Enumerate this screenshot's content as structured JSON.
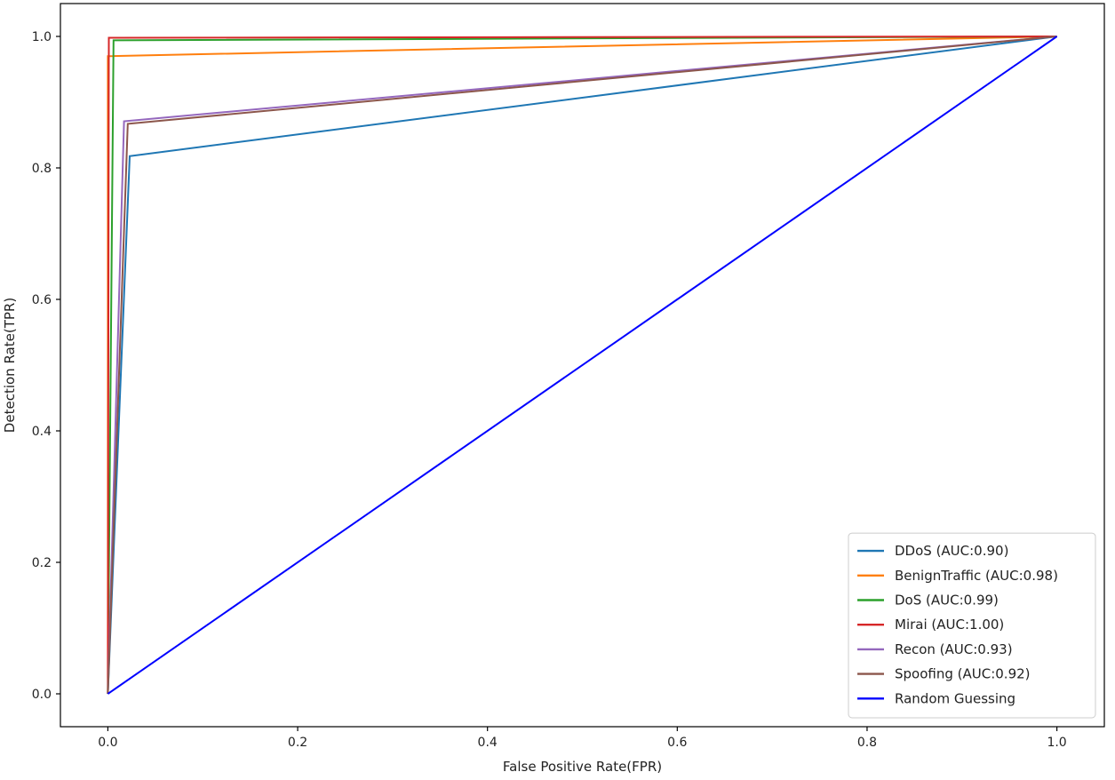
{
  "chart_data": {
    "type": "line",
    "title": "",
    "xlabel": "False Positive Rate(FPR)",
    "ylabel": "Detection Rate(TPR)",
    "xlim": [
      -0.05,
      1.05
    ],
    "ylim": [
      -0.05,
      1.05
    ],
    "xticks": [
      0.0,
      0.2,
      0.4,
      0.6,
      0.8,
      1.0
    ],
    "xtick_labels": [
      "0.0",
      "0.2",
      "0.4",
      "0.6",
      "0.8",
      "1.0"
    ],
    "yticks": [
      0.0,
      0.2,
      0.4,
      0.6,
      0.8,
      1.0
    ],
    "ytick_labels": [
      "0.0",
      "0.2",
      "0.4",
      "0.6",
      "0.8",
      "1.0"
    ],
    "grid": false,
    "legend_position": "lower-right",
    "series": [
      {
        "name": "DDoS (AUC:0.90)",
        "color": "#1f77b4",
        "x": [
          0.0,
          0.023,
          1.0
        ],
        "y": [
          0.0,
          0.818,
          1.0
        ]
      },
      {
        "name": "BenignTraffic (AUC:0.98)",
        "color": "#ff7f0e",
        "x": [
          0.0,
          0.0,
          1.0
        ],
        "y": [
          0.0,
          0.97,
          1.0
        ]
      },
      {
        "name": "DoS (AUC:0.99)",
        "color": "#2ca02c",
        "x": [
          0.0,
          0.006,
          1.0
        ],
        "y": [
          0.0,
          0.994,
          1.0
        ]
      },
      {
        "name": "Mirai (AUC:1.00)",
        "color": "#d62728",
        "x": [
          0.0,
          0.001,
          1.0
        ],
        "y": [
          0.0,
          0.998,
          1.0
        ]
      },
      {
        "name": "Recon (AUC:0.93)",
        "color": "#9467bd",
        "x": [
          0.0,
          0.017,
          1.0
        ],
        "y": [
          0.0,
          0.871,
          1.0
        ]
      },
      {
        "name": "Spoofing (AUC:0.92)",
        "color": "#8c564b",
        "x": [
          0.0,
          0.021,
          1.0
        ],
        "y": [
          0.0,
          0.867,
          1.0
        ]
      },
      {
        "name": "Random Guessing",
        "color": "#0000ff",
        "x": [
          0.0,
          1.0
        ],
        "y": [
          0.0,
          1.0
        ]
      }
    ]
  }
}
